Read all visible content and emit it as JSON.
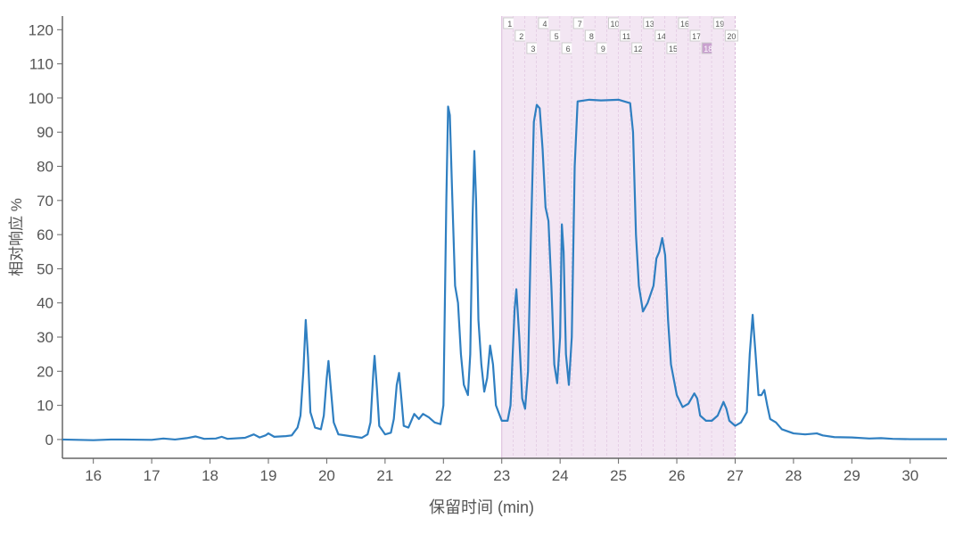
{
  "chart_data": {
    "type": "line",
    "x_label": "保留时间 (min)",
    "y_label": "相对响应 %",
    "xlim": [
      15.47,
      30.63
    ],
    "ylim": [
      -5.5,
      124
    ],
    "xticks": [
      16,
      17,
      18,
      19,
      20,
      21,
      22,
      23,
      24,
      25,
      26,
      27,
      28,
      29,
      30
    ],
    "yticks": [
      0,
      10,
      20,
      30,
      40,
      50,
      60,
      70,
      80,
      90,
      100,
      110,
      120
    ],
    "fractions": {
      "labels": [
        "1",
        "2",
        "3",
        "4",
        "5",
        "6",
        "7",
        "8",
        "9",
        "10",
        "11",
        "12",
        "13",
        "14",
        "15",
        "16",
        "17",
        "18",
        "19",
        "20"
      ],
      "bounds": [
        23.0,
        23.2,
        23.4,
        23.6,
        23.8,
        24.0,
        24.2,
        24.4,
        24.6,
        24.8,
        25.0,
        25.2,
        25.4,
        25.6,
        25.8,
        26.0,
        26.2,
        26.4,
        26.6,
        26.8,
        27.0
      ],
      "selected": "18",
      "color": "#f3e6f3"
    },
    "series": [
      {
        "color": "#2f7fc1",
        "x": [
          15.47,
          16,
          16.3,
          16.5,
          17,
          17.2,
          17.4,
          17.6,
          17.75,
          17.9,
          18.1,
          18.2,
          18.3,
          18.6,
          18.75,
          18.85,
          18.95,
          19.0,
          19.1,
          19.3,
          19.4,
          19.5,
          19.55,
          19.6,
          19.64,
          19.68,
          19.72,
          19.8,
          19.9,
          19.95,
          20.0,
          20.03,
          20.07,
          20.12,
          20.2,
          20.4,
          20.6,
          20.7,
          20.75,
          20.8,
          20.82,
          20.86,
          20.9,
          21.0,
          21.1,
          21.15,
          21.2,
          21.24,
          21.28,
          21.32,
          21.4,
          21.5,
          21.58,
          21.65,
          21.75,
          21.85,
          21.95,
          22.0,
          22.05,
          22.08,
          22.11,
          22.15,
          22.2,
          22.25,
          22.3,
          22.35,
          22.42,
          22.46,
          22.5,
          22.53,
          22.56,
          22.6,
          22.65,
          22.7,
          22.75,
          22.8,
          22.85,
          22.9,
          23.0,
          23.1,
          23.15,
          23.22,
          23.25,
          23.3,
          23.35,
          23.4,
          23.45,
          23.5,
          23.55,
          23.6,
          23.65,
          23.7,
          23.75,
          23.8,
          23.85,
          23.9,
          23.95,
          24.0,
          24.03,
          24.06,
          24.1,
          24.15,
          24.2,
          24.25,
          24.3,
          24.5,
          24.7,
          25.0,
          25.2,
          25.25,
          25.3,
          25.35,
          25.42,
          25.5,
          25.6,
          25.65,
          25.7,
          25.75,
          25.8,
          25.85,
          25.9,
          26.0,
          26.1,
          26.2,
          26.3,
          26.35,
          26.4,
          26.5,
          26.6,
          26.7,
          26.8,
          26.85,
          26.9,
          27.0,
          27.1,
          27.2,
          27.25,
          27.3,
          27.35,
          27.4,
          27.45,
          27.5,
          27.55,
          27.6,
          27.7,
          27.8,
          28.0,
          28.2,
          28.4,
          28.5,
          28.7,
          29.0,
          29.3,
          29.5,
          29.7,
          30.0,
          30.63
        ],
        "values": [
          0,
          -0.2,
          0,
          0,
          -0.1,
          0.3,
          0,
          0.4,
          0.9,
          0.2,
          0.3,
          0.8,
          0.2,
          0.5,
          1.5,
          0.6,
          1.2,
          1.8,
          0.8,
          1.0,
          1.2,
          3.5,
          7,
          20,
          35,
          24,
          8,
          3.5,
          3,
          7,
          18,
          23,
          15,
          5,
          1.5,
          1,
          0.5,
          1.5,
          5,
          20,
          24.5,
          15,
          4,
          1.5,
          2,
          6,
          16,
          19.5,
          12,
          4,
          3.5,
          7.5,
          6,
          7.5,
          6.5,
          5,
          4.5,
          10,
          70,
          97.5,
          95,
          72,
          45,
          40,
          25,
          16,
          13,
          25,
          65,
          84.5,
          70,
          35,
          22,
          14,
          18,
          27.5,
          22,
          10,
          5.5,
          5.5,
          10,
          38,
          44,
          30,
          12,
          9,
          20,
          60,
          93,
          98,
          97,
          85,
          68,
          64,
          45,
          22,
          16.5,
          30,
          63,
          55,
          25,
          16,
          30,
          80,
          99,
          99.5,
          99.3,
          99.5,
          98.5,
          90,
          60,
          45,
          37.5,
          40,
          45,
          53,
          55,
          59,
          54,
          35,
          22,
          13,
          9.5,
          10.5,
          13.5,
          12,
          7,
          5.5,
          5.5,
          7,
          11,
          9,
          5.5,
          4,
          5,
          8,
          25,
          36.5,
          25,
          13,
          13,
          14.5,
          10,
          6,
          5,
          3,
          1.8,
          1.5,
          1.8,
          1.2,
          0.7,
          0.6,
          0.3,
          0.4,
          0.2,
          0.1,
          0.1
        ]
      }
    ]
  }
}
